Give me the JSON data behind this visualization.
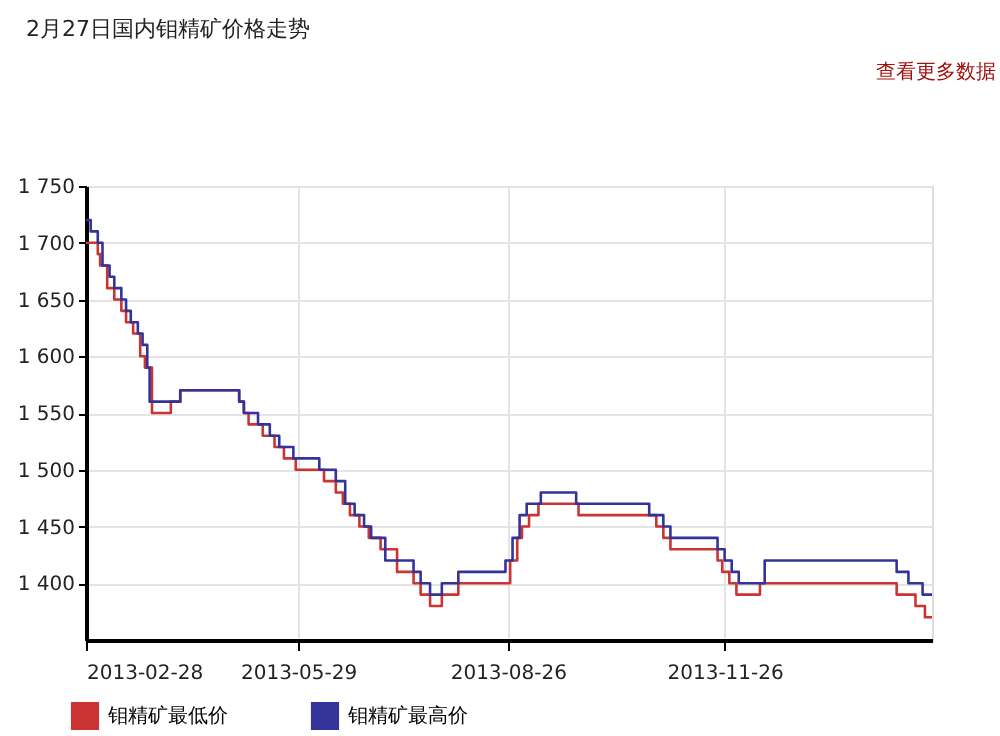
{
  "chart_data": {
    "type": "step",
    "title": "2月27日国内钼精矿价格走势",
    "annotations": [
      "查看更多数据"
    ],
    "xlim": [
      "2013-02-28",
      "2014-02-22"
    ],
    "xticks": [
      "2013-02-28",
      "2013-05-29",
      "2013-08-26",
      "2013-11-26"
    ],
    "ylim": [
      1350,
      1750
    ],
    "yticks": [
      {
        "value": 1400,
        "label": "1 400"
      },
      {
        "value": 1450,
        "label": "1 450"
      },
      {
        "value": 1500,
        "label": "1 500"
      },
      {
        "value": 1550,
        "label": "1 550"
      },
      {
        "value": 1600,
        "label": "1 600"
      },
      {
        "value": 1650,
        "label": "1 650"
      },
      {
        "value": 1700,
        "label": "1 700"
      },
      {
        "value": 1750,
        "label": "1 750"
      }
    ],
    "grid": true,
    "legend": "bottom left",
    "marker": "none",
    "line_style": "solid",
    "series": [
      {
        "name": "钼精矿最低价",
        "color": "#cc3333",
        "x": [
          "2013-02-28",
          "2013-03-05",
          "2013-03-06",
          "2013-03-09",
          "2013-03-12",
          "2013-03-15",
          "2013-03-17",
          "2013-03-20",
          "2013-03-23",
          "2013-03-25",
          "2013-03-28",
          "2013-04-05",
          "2013-04-09",
          "2013-05-04",
          "2013-05-06",
          "2013-05-08",
          "2013-05-14",
          "2013-05-19",
          "2013-05-23",
          "2013-05-28",
          "2013-06-09",
          "2013-06-14",
          "2013-06-17",
          "2013-06-20",
          "2013-06-24",
          "2013-06-28",
          "2013-07-03",
          "2013-07-10",
          "2013-07-17",
          "2013-07-20",
          "2013-07-24",
          "2013-07-29",
          "2013-08-05",
          "2013-08-27",
          "2013-08-30",
          "2013-09-01",
          "2013-09-04",
          "2013-09-08",
          "2013-09-25",
          "2013-10-28",
          "2013-10-31",
          "2013-11-03",
          "2013-11-23",
          "2013-11-25",
          "2013-11-28",
          "2013-12-01",
          "2013-12-11",
          "2014-02-07",
          "2014-02-15",
          "2014-02-19",
          "2014-02-22"
        ],
        "values": [
          1700,
          1690,
          1680,
          1660,
          1650,
          1640,
          1630,
          1620,
          1600,
          1590,
          1550,
          1560,
          1570,
          1560,
          1550,
          1540,
          1530,
          1520,
          1510,
          1500,
          1490,
          1480,
          1470,
          1460,
          1450,
          1440,
          1430,
          1410,
          1400,
          1390,
          1380,
          1390,
          1400,
          1420,
          1440,
          1450,
          1460,
          1470,
          1460,
          1450,
          1440,
          1430,
          1420,
          1410,
          1400,
          1390,
          1400,
          1390,
          1380,
          1370,
          1370
        ]
      },
      {
        "name": "钼精矿最高价",
        "color": "#333399",
        "x": [
          "2013-02-28",
          "2013-03-02",
          "2013-03-05",
          "2013-03-07",
          "2013-03-10",
          "2013-03-12",
          "2013-03-15",
          "2013-03-17",
          "2013-03-19",
          "2013-03-22",
          "2013-03-24",
          "2013-03-26",
          "2013-03-27",
          "2013-04-09",
          "2013-05-04",
          "2013-05-06",
          "2013-05-12",
          "2013-05-17",
          "2013-05-21",
          "2013-05-27",
          "2013-06-07",
          "2013-06-14",
          "2013-06-18",
          "2013-06-22",
          "2013-06-26",
          "2013-06-29",
          "2013-07-05",
          "2013-07-17",
          "2013-07-20",
          "2013-07-24",
          "2013-07-29",
          "2013-08-05",
          "2013-08-25",
          "2013-08-28",
          "2013-08-31",
          "2013-09-03",
          "2013-09-09",
          "2013-09-24",
          "2013-10-25",
          "2013-10-31",
          "2013-11-03",
          "2013-11-23",
          "2013-11-26",
          "2013-11-29",
          "2013-12-02",
          "2013-12-13",
          "2014-02-07",
          "2014-02-12",
          "2014-02-18",
          "2014-02-22"
        ],
        "values": [
          1720,
          1710,
          1700,
          1680,
          1670,
          1660,
          1650,
          1640,
          1630,
          1620,
          1610,
          1590,
          1560,
          1570,
          1560,
          1550,
          1540,
          1530,
          1520,
          1510,
          1500,
          1490,
          1470,
          1460,
          1450,
          1440,
          1420,
          1410,
          1400,
          1390,
          1400,
          1410,
          1420,
          1440,
          1460,
          1470,
          1480,
          1470,
          1460,
          1450,
          1440,
          1430,
          1420,
          1410,
          1400,
          1420,
          1410,
          1400,
          1390,
          1390
        ]
      }
    ]
  }
}
